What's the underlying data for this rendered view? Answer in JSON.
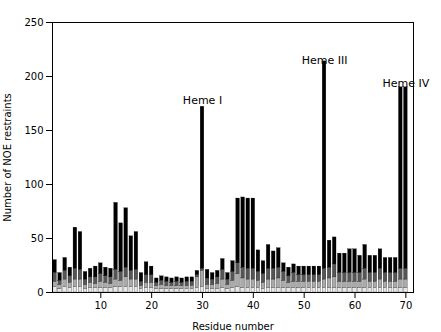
{
  "chart_data": {
    "type": "bar",
    "stacked": true,
    "xlabel": "Residue number",
    "ylabel": "Number of NOE restraints",
    "xlim": [
      0.5,
      71.5
    ],
    "xticks": [
      10,
      20,
      30,
      40,
      50,
      60,
      70
    ],
    "ylim": [
      0,
      250
    ],
    "yticks": [
      0,
      50,
      100,
      150,
      200,
      250
    ],
    "grid": false,
    "x": [
      1,
      2,
      3,
      4,
      5,
      6,
      7,
      8,
      9,
      10,
      11,
      12,
      13,
      14,
      15,
      16,
      17,
      18,
      19,
      20,
      21,
      22,
      23,
      24,
      25,
      26,
      27,
      28,
      29,
      30,
      31,
      32,
      33,
      34,
      35,
      36,
      37,
      38,
      39,
      40,
      41,
      42,
      43,
      44,
      45,
      46,
      47,
      48,
      49,
      50,
      51,
      52,
      53,
      54,
      55,
      56,
      57,
      58,
      59,
      60,
      61,
      62,
      63,
      64,
      65,
      66,
      67,
      68,
      69,
      70
    ],
    "series": [
      {
        "color": "#e8e8e8",
        "values": [
          5,
          3,
          5,
          4,
          5,
          5,
          3,
          4,
          4,
          4,
          4,
          4,
          5,
          5,
          5,
          5,
          5,
          3,
          4,
          4,
          3,
          3,
          3,
          3,
          3,
          3,
          3,
          3,
          4,
          5,
          3,
          3,
          3,
          4,
          3,
          4,
          5,
          4,
          4,
          4,
          4,
          3,
          4,
          4,
          4,
          4,
          4,
          4,
          4,
          4,
          4,
          4,
          4,
          4,
          4,
          4,
          4,
          4,
          4,
          4,
          4,
          4,
          4,
          4,
          4,
          4,
          4,
          4,
          4,
          4
        ]
      },
      {
        "color": "#aaaaaa",
        "values": [
          5,
          4,
          7,
          5,
          7,
          7,
          4,
          5,
          4,
          6,
          5,
          4,
          7,
          6,
          9,
          7,
          7,
          3,
          5,
          5,
          3,
          4,
          3,
          3,
          3,
          3,
          3,
          3,
          10,
          15,
          4,
          4,
          5,
          8,
          4,
          7,
          12,
          9,
          8,
          8,
          7,
          6,
          8,
          8,
          9,
          7,
          5,
          6,
          6,
          6,
          6,
          6,
          6,
          8,
          9,
          10,
          6,
          6,
          6,
          6,
          6,
          8,
          6,
          6,
          8,
          6,
          6,
          6,
          8,
          8
        ]
      },
      {
        "color": "#555555",
        "values": [
          8,
          4,
          8,
          6,
          10,
          9,
          5,
          5,
          6,
          7,
          6,
          6,
          9,
          8,
          9,
          8,
          9,
          4,
          7,
          7,
          3,
          4,
          4,
          3,
          4,
          3,
          4,
          4,
          2,
          2,
          6,
          5,
          6,
          9,
          5,
          8,
          10,
          10,
          10,
          10,
          8,
          8,
          10,
          10,
          10,
          8,
          6,
          8,
          6,
          6,
          6,
          6,
          6,
          10,
          10,
          12,
          8,
          8,
          8,
          8,
          8,
          10,
          8,
          8,
          10,
          8,
          8,
          8,
          10,
          10
        ]
      },
      {
        "color": "#000000",
        "values": [
          12,
          7,
          12,
          8,
          38,
          35,
          7,
          8,
          10,
          10,
          8,
          8,
          62,
          45,
          55,
          32,
          35,
          8,
          12,
          8,
          4,
          4,
          4,
          4,
          4,
          4,
          4,
          4,
          4,
          150,
          8,
          6,
          6,
          10,
          6,
          10,
          60,
          65,
          65,
          65,
          20,
          12,
          22,
          16,
          18,
          8,
          8,
          8,
          8,
          8,
          8,
          8,
          8,
          192,
          25,
          25,
          18,
          18,
          22,
          22,
          16,
          22,
          16,
          16,
          18,
          14,
          14,
          14,
          168,
          168
        ]
      }
    ],
    "annotations": [
      {
        "text": "Heme I",
        "x": 30,
        "y": 175
      },
      {
        "text": "Heme III",
        "x": 54,
        "y": 212
      },
      {
        "text": "Heme IV",
        "x": 70,
        "y": 190
      }
    ]
  }
}
